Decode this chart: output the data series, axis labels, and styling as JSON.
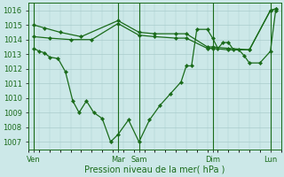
{
  "background_color": "#cce8e8",
  "grid_color": "#aacccc",
  "line_color": "#1a6b1a",
  "xlabel": "Pression niveau de la mer( hPa )",
  "ylim": [
    1006.5,
    1016.5
  ],
  "yticks": [
    1007,
    1008,
    1009,
    1010,
    1011,
    1012,
    1013,
    1014,
    1015,
    1016
  ],
  "xlim": [
    0,
    24
  ],
  "day_labels": [
    "Ven",
    "Mar",
    "Sam",
    "Dim",
    "Lun"
  ],
  "day_positions": [
    0.5,
    8.5,
    10.5,
    17.5,
    23.0
  ],
  "vline_positions": [
    0.5,
    8.5,
    10.5,
    17.5,
    23.0
  ],
  "line1_x": [
    0.5,
    1.0,
    1.5,
    2.0,
    2.8,
    3.5,
    4.2,
    4.8,
    5.5,
    6.2,
    7.0,
    7.8,
    8.5,
    9.5,
    10.5,
    11.5,
    12.5,
    13.5,
    14.5,
    15.0,
    15.5,
    16.0,
    17.0,
    17.5,
    18.0,
    18.5,
    19.0,
    19.5,
    20.0,
    20.5,
    21.0,
    22.0,
    23.0,
    23.5
  ],
  "line1_y": [
    1013.4,
    1013.2,
    1013.1,
    1012.8,
    1012.7,
    1011.8,
    1009.8,
    1009.0,
    1009.8,
    1009.0,
    1008.6,
    1007.0,
    1007.5,
    1008.5,
    1007.0,
    1008.5,
    1009.5,
    1010.3,
    1011.1,
    1012.2,
    1012.2,
    1014.7,
    1014.7,
    1014.1,
    1013.4,
    1013.8,
    1013.8,
    1013.3,
    1013.3,
    1012.9,
    1012.4,
    1012.4,
    1013.2,
    1016.0
  ],
  "line2_x": [
    0.5,
    2.0,
    4.0,
    6.0,
    8.5,
    10.5,
    12.0,
    14.0,
    15.0,
    17.0,
    17.5,
    19.0,
    21.0,
    23.0,
    23.5
  ],
  "line2_y": [
    1014.2,
    1014.1,
    1014.0,
    1014.0,
    1015.1,
    1014.3,
    1014.2,
    1014.1,
    1014.1,
    1013.4,
    1013.4,
    1013.3,
    1013.3,
    1016.0,
    1016.1
  ],
  "line3_x": [
    0.5,
    1.5,
    3.0,
    5.0,
    8.5,
    10.5,
    12.0,
    14.0,
    15.0,
    17.0,
    17.5,
    19.0,
    21.0,
    23.0,
    23.5
  ],
  "line3_y": [
    1015.0,
    1014.8,
    1014.5,
    1014.2,
    1015.3,
    1014.5,
    1014.4,
    1014.4,
    1014.4,
    1013.5,
    1013.5,
    1013.4,
    1013.3,
    1016.0,
    1016.1
  ]
}
